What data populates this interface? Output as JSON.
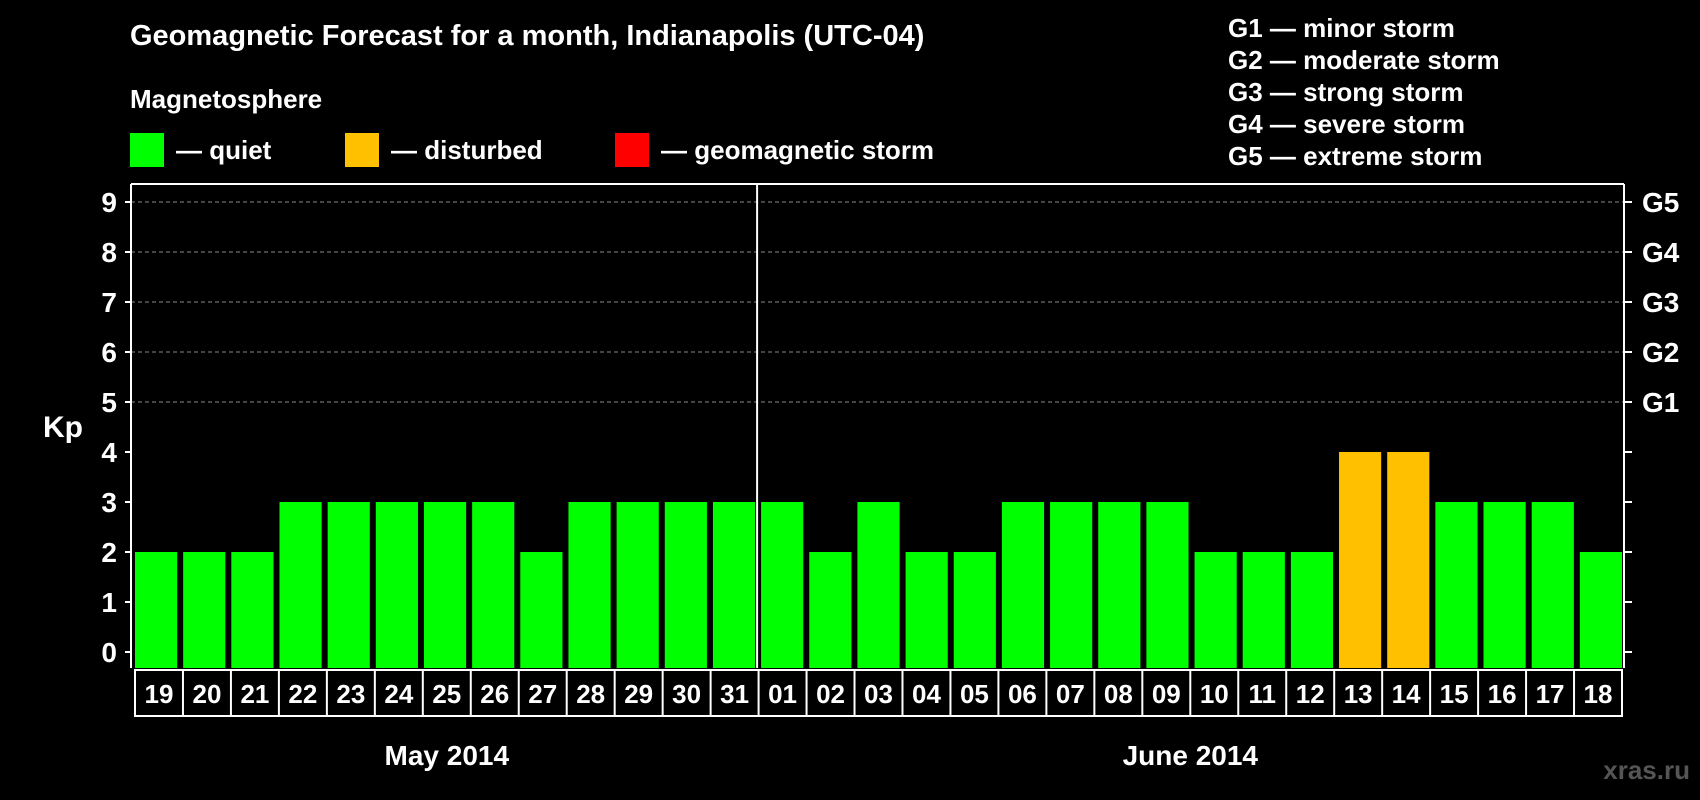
{
  "header": {
    "title": "Geomagnetic Forecast for a month, Indianapolis (UTC-04)",
    "subtitle": "Magnetosphere"
  },
  "legend": [
    {
      "label": "— quiet",
      "color": "#00ff00"
    },
    {
      "label": "— disturbed",
      "color": "#ffc000"
    },
    {
      "label": "— geomagnetic storm",
      "color": "#ff0000"
    }
  ],
  "g_legend": [
    "G1 — minor storm",
    "G2 — moderate storm",
    "G3 — strong storm",
    "G4 — severe storm",
    "G5 — extreme storm"
  ],
  "watermark": "xras.ru",
  "chart_data": {
    "type": "bar",
    "ylabel": "Kp",
    "ylim": [
      0,
      9
    ],
    "yticks": [
      "0",
      "1",
      "2",
      "3",
      "4",
      "5",
      "6",
      "7",
      "8",
      "9"
    ],
    "right_ticks": {
      "5": "G1",
      "6": "G2",
      "7": "G3",
      "8": "G4",
      "9": "G5"
    },
    "grid": "dashed at Kp 5-9",
    "months": [
      {
        "label": "May 2014",
        "start_index": 0,
        "count": 13
      },
      {
        "label": "June 2014",
        "start_index": 13,
        "count": 18
      }
    ],
    "categories": [
      "19",
      "20",
      "21",
      "22",
      "23",
      "24",
      "25",
      "26",
      "27",
      "28",
      "29",
      "30",
      "31",
      "01",
      "02",
      "03",
      "04",
      "05",
      "06",
      "07",
      "08",
      "09",
      "10",
      "11",
      "12",
      "13",
      "14",
      "15",
      "16",
      "17",
      "18"
    ],
    "values": [
      2,
      2,
      2,
      3,
      3,
      3,
      3,
      3,
      2,
      3,
      3,
      3,
      3,
      3,
      2,
      3,
      2,
      2,
      3,
      3,
      3,
      3,
      2,
      2,
      2,
      4,
      4,
      3,
      3,
      3,
      2
    ],
    "colors": {
      "quiet": "#00ff00",
      "disturbed": "#ffc000",
      "storm": "#ff0000"
    }
  }
}
